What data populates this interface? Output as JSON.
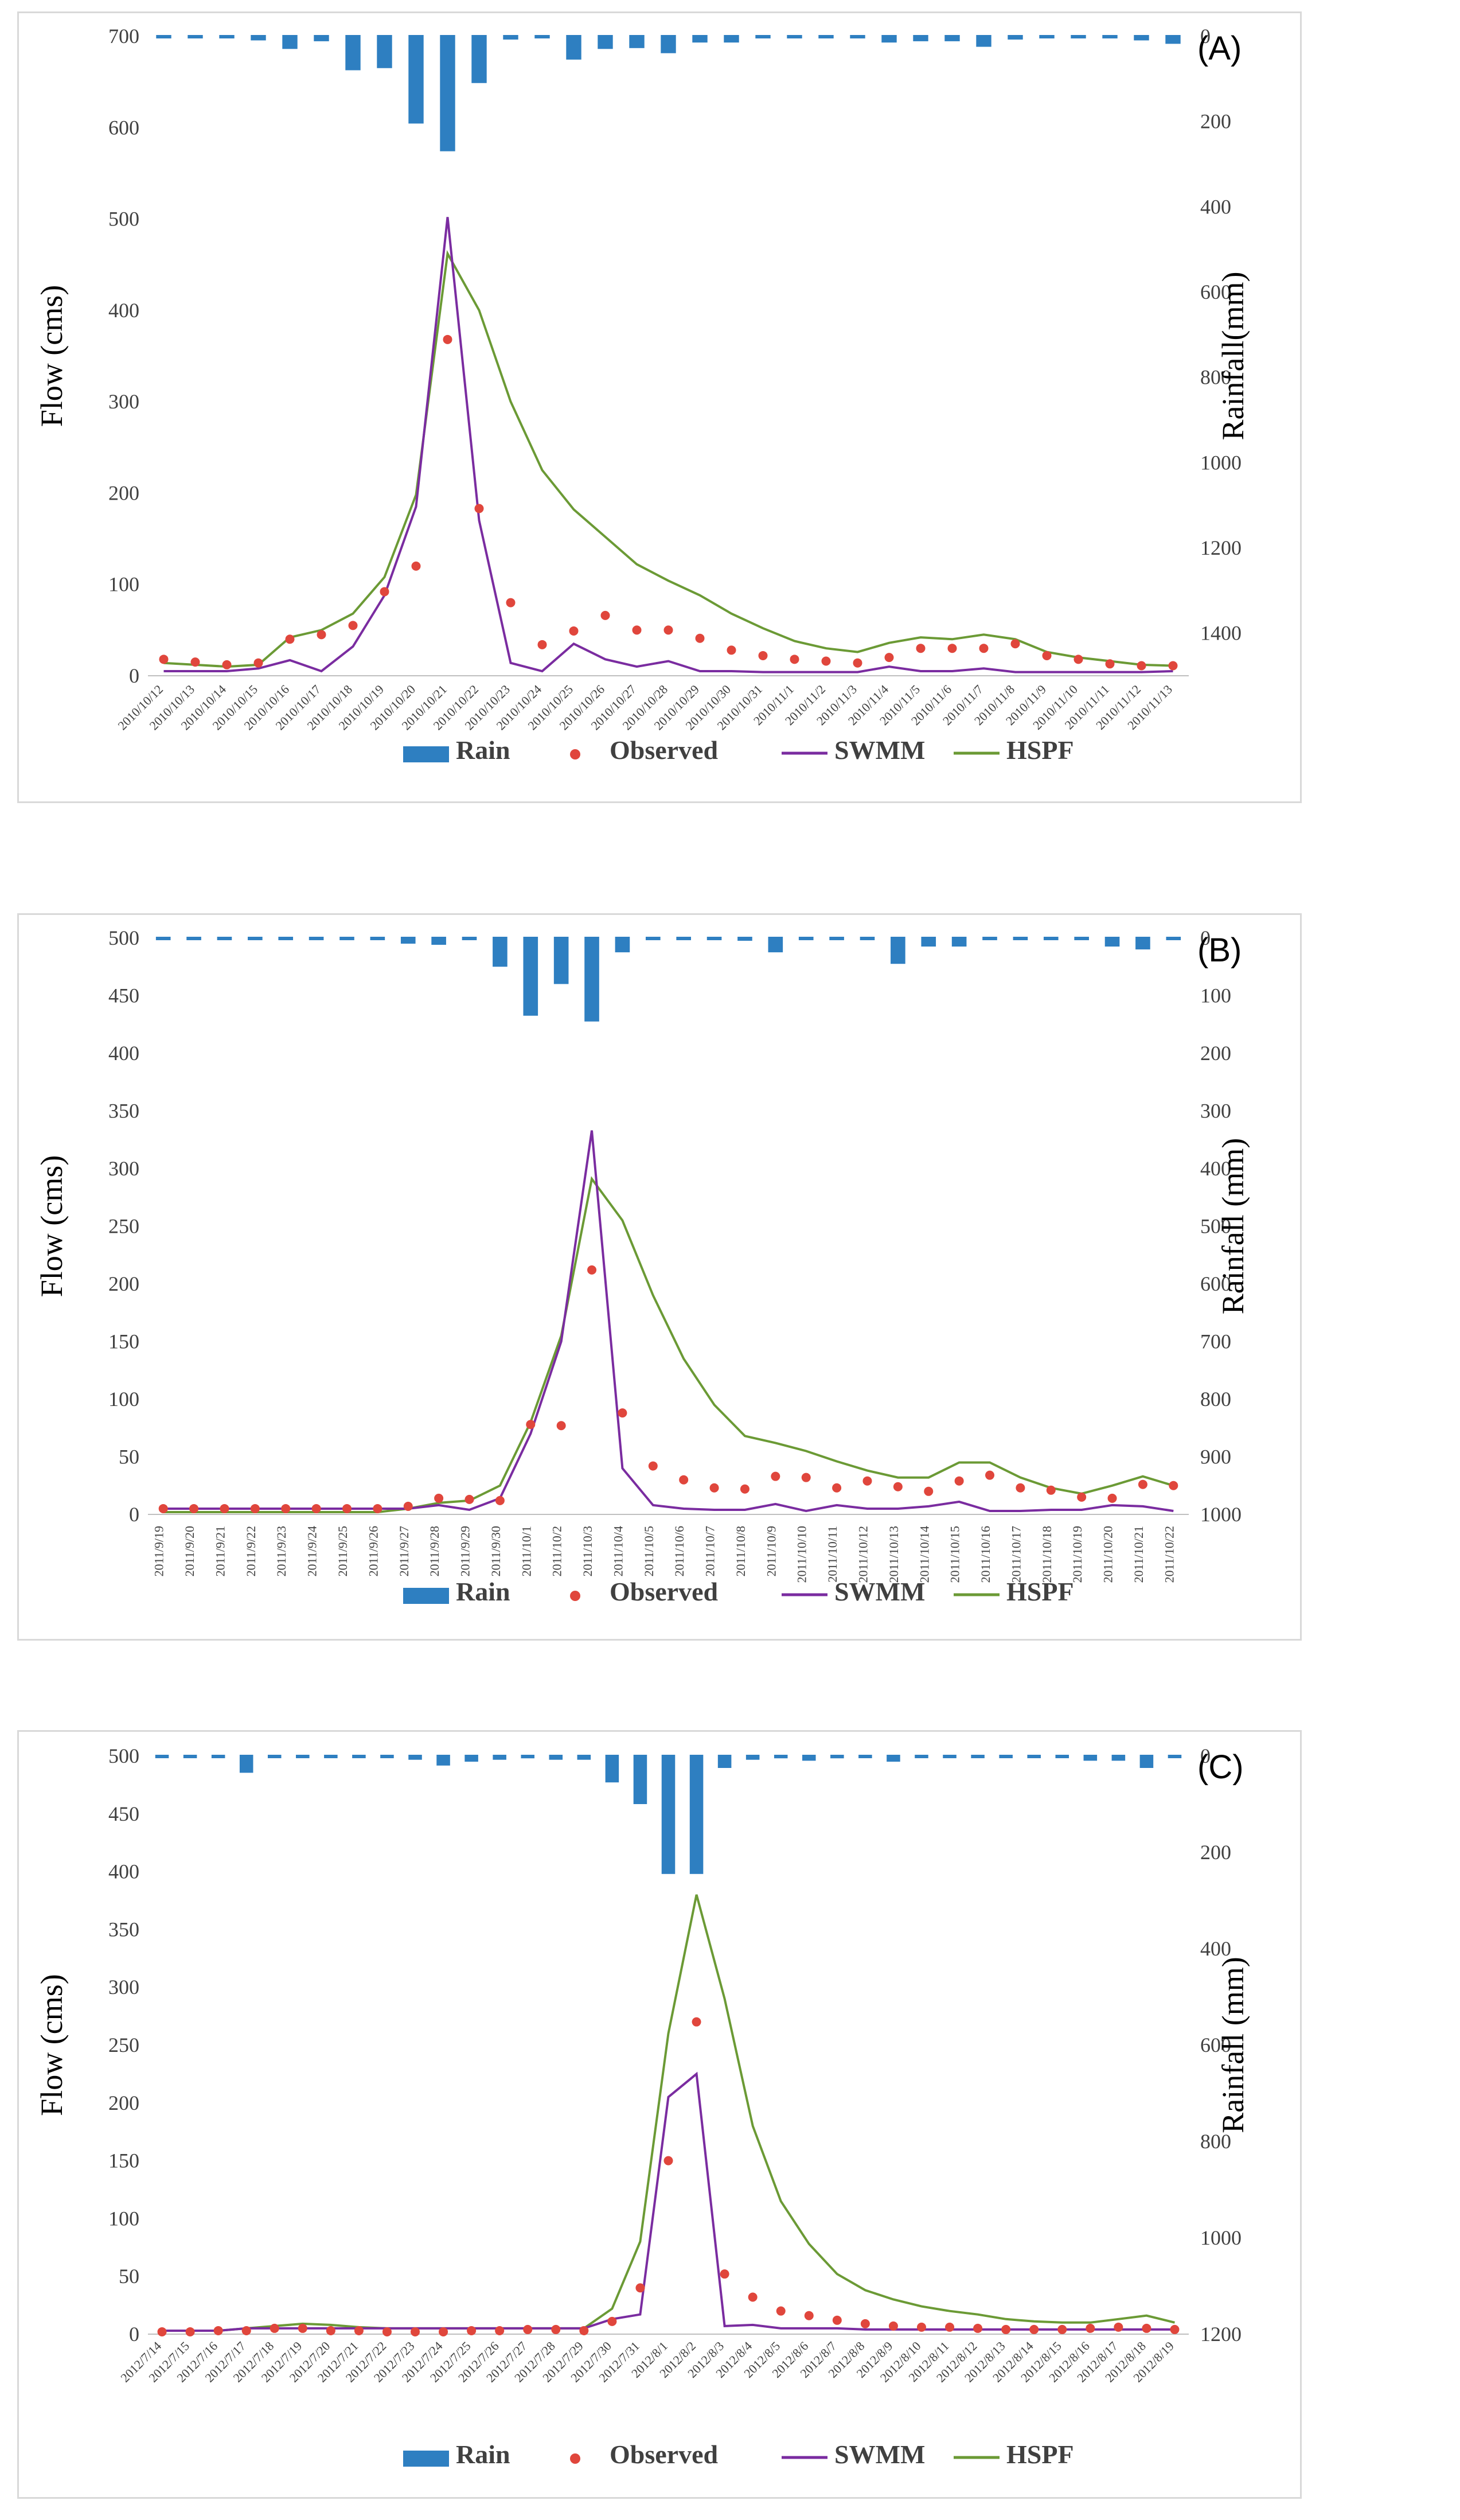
{
  "chart_data": [
    {
      "type": "bar+line",
      "panel_label": "(A)",
      "ylabel_left": "Flow (cms)",
      "ylabel_right": "Rainfall(mm)",
      "ylim_left": [
        0,
        700
      ],
      "yticks_left": [
        0,
        100,
        200,
        300,
        400,
        500,
        600,
        700
      ],
      "ylim_right_inverted": [
        0,
        1500
      ],
      "yticks_right": [
        0,
        200,
        400,
        600,
        800,
        1000,
        1200,
        1400
      ],
      "categories": [
        "2010/10/12",
        "2010/10/13",
        "2010/10/14",
        "2010/10/15",
        "2010/10/16",
        "2010/10/17",
        "2010/10/18",
        "2010/10/19",
        "2010/10/20",
        "2010/10/21",
        "2010/10/22",
        "2010/10/23",
        "2010/10/24",
        "2010/10/25",
        "2010/10/26",
        "2010/10/27",
        "2010/10/28",
        "2010/10/29",
        "2010/10/30",
        "2010/10/31",
        "2010/11/1",
        "2010/11/2",
        "2010/11/3",
        "2010/11/4",
        "2010/11/5",
        "2010/11/6",
        "2010/11/7",
        "2010/11/8",
        "2010/11/9",
        "2010/11/10",
        "2010/11/11",
        "2010/11/12",
        "2010/11/13"
      ],
      "rain": [
        0,
        0,
        5,
        10,
        30,
        12,
        80,
        75,
        205,
        270,
        110,
        8,
        0,
        55,
        30,
        28,
        40,
        15,
        15,
        5,
        0,
        0,
        5,
        15,
        12,
        12,
        25,
        8,
        0,
        0,
        0,
        10,
        18
      ],
      "observed": [
        18,
        15,
        12,
        14,
        40,
        45,
        55,
        92,
        120,
        368,
        183,
        80,
        34,
        49,
        66,
        50,
        50,
        41,
        28,
        22,
        18,
        16,
        14,
        20,
        30,
        30,
        30,
        35,
        22,
        18,
        13,
        11,
        11
      ],
      "swmm": [
        5,
        5,
        5,
        8,
        17,
        5,
        32,
        88,
        185,
        502,
        170,
        14,
        5,
        35,
        18,
        10,
        16,
        5,
        5,
        4,
        4,
        4,
        4,
        10,
        5,
        5,
        8,
        4,
        4,
        4,
        4,
        4,
        5
      ],
      "hspf": [
        14,
        12,
        10,
        12,
        42,
        50,
        68,
        108,
        198,
        462,
        400,
        300,
        225,
        182,
        152,
        122,
        104,
        88,
        68,
        52,
        38,
        30,
        26,
        36,
        42,
        40,
        45,
        40,
        26,
        20,
        16,
        12,
        11
      ],
      "legend": [
        "Rain",
        "Observed",
        "SWMM",
        "HSPF"
      ]
    },
    {
      "type": "bar+line",
      "panel_label": "(B)",
      "ylabel_left": "Flow (cms)",
      "ylabel_right": "Rainfall (mm)",
      "ylim_left": [
        0,
        500
      ],
      "yticks_left": [
        0,
        50,
        100,
        150,
        200,
        250,
        300,
        350,
        400,
        450,
        500
      ],
      "ylim_right_inverted": [
        0,
        1000
      ],
      "yticks_right": [
        0,
        100,
        200,
        300,
        400,
        500,
        600,
        700,
        800,
        900,
        1000
      ],
      "categories": [
        "2011/9/19",
        "2011/9/20",
        "2011/9/21",
        "2011/9/22",
        "2011/9/23",
        "2011/9/24",
        "2011/9/25",
        "2011/9/26",
        "2011/9/27",
        "2011/9/28",
        "2011/9/29",
        "2011/9/30",
        "2011/10/1",
        "2011/10/2",
        "2011/10/3",
        "2011/10/4",
        "2011/10/5",
        "2011/10/6",
        "2011/10/7",
        "2011/10/8",
        "2011/10/9",
        "2011/10/10",
        "2011/10/11",
        "2011/10/12",
        "2011/10/13",
        "2011/10/14",
        "2011/10/15",
        "2011/10/16",
        "2011/10/17",
        "2011/10/18",
        "2011/10/19",
        "2011/10/20",
        "2011/10/21",
        "2011/10/22"
      ],
      "rain": [
        3,
        0,
        3,
        0,
        0,
        0,
        0,
        0,
        10,
        12,
        0,
        50,
        135,
        80,
        145,
        25,
        3,
        3,
        3,
        5,
        25,
        0,
        3,
        3,
        45,
        15,
        15,
        3,
        0,
        3,
        0,
        15,
        20,
        3
      ],
      "observed": [
        5,
        5,
        5,
        5,
        5,
        5,
        5,
        5,
        7,
        14,
        13,
        12,
        78,
        77,
        212,
        88,
        42,
        30,
        23,
        22,
        33,
        32,
        23,
        29,
        24,
        20,
        29,
        34,
        23,
        21,
        15,
        14,
        26,
        25
      ],
      "swmm": [
        5,
        5,
        5,
        5,
        5,
        5,
        5,
        5,
        5,
        8,
        4,
        14,
        70,
        150,
        333,
        40,
        8,
        5,
        4,
        4,
        9,
        3,
        8,
        5,
        5,
        7,
        11,
        3,
        3,
        4,
        4,
        8,
        7,
        3
      ],
      "hspf": [
        2,
        2,
        2,
        2,
        2,
        2,
        2,
        2,
        5,
        10,
        12,
        25,
        80,
        155,
        291,
        255,
        190,
        135,
        95,
        68,
        62,
        55,
        46,
        38,
        32,
        32,
        45,
        45,
        32,
        23,
        18,
        25,
        33,
        25
      ],
      "legend": [
        "Rain",
        "Observed",
        "SWMM",
        "HSPF"
      ]
    },
    {
      "type": "bar+line",
      "panel_label": "(C)",
      "ylabel_left": "Flow (cms)",
      "ylabel_right": "Rainfall (mm)",
      "ylim_left": [
        0,
        500
      ],
      "yticks_left": [
        0,
        50,
        100,
        150,
        200,
        250,
        300,
        350,
        400,
        450,
        500
      ],
      "ylim_right_inverted": [
        0,
        1200
      ],
      "yticks_right": [
        0,
        200,
        400,
        600,
        800,
        1000,
        1200
      ],
      "categories": [
        "2012/7/14",
        "2012/7/15",
        "2012/7/16",
        "2012/7/17",
        "2012/7/18",
        "2012/7/19",
        "2012/7/20",
        "2012/7/21",
        "2012/7/22",
        "2012/7/23",
        "2012/7/24",
        "2012/7/25",
        "2012/7/26",
        "2012/7/27",
        "2012/7/28",
        "2012/7/29",
        "2012/7/30",
        "2012/7/31",
        "2012/8/1",
        "2012/8/2",
        "2012/8/3",
        "2012/8/4",
        "2012/8/5",
        "2012/8/6",
        "2012/8/7",
        "2012/8/8",
        "2012/8/9",
        "2012/8/10",
        "2012/8/11",
        "2012/8/12",
        "2012/8/13",
        "2012/8/14",
        "2012/8/15",
        "2012/8/16",
        "2012/8/17",
        "2012/8/18",
        "2012/8/19"
      ],
      "rain": [
        0,
        3,
        0,
        35,
        0,
        0,
        3,
        3,
        3,
        8,
        20,
        12,
        8,
        5,
        8,
        8,
        55,
        100,
        245,
        245,
        25,
        8,
        5,
        10,
        5,
        0,
        12,
        0,
        0,
        3,
        0,
        3,
        0,
        10,
        10,
        25,
        3
      ],
      "observed": [
        2,
        2,
        3,
        3,
        5,
        5,
        3,
        3,
        2,
        2,
        2,
        3,
        3,
        4,
        4,
        3,
        11,
        40,
        150,
        270,
        52,
        32,
        20,
        16,
        12,
        9,
        7,
        6,
        6,
        5,
        4,
        4,
        4,
        5,
        6,
        5,
        4
      ],
      "swmm": [
        3,
        3,
        3,
        5,
        5,
        5,
        5,
        5,
        5,
        5,
        5,
        5,
        5,
        5,
        5,
        5,
        13,
        17,
        205,
        225,
        7,
        8,
        5,
        5,
        5,
        4,
        4,
        4,
        4,
        4,
        4,
        4,
        4,
        4,
        4,
        4,
        4
      ],
      "hspf": [
        3,
        3,
        3,
        5,
        7,
        9,
        8,
        6,
        5,
        5,
        5,
        5,
        5,
        5,
        5,
        5,
        22,
        80,
        260,
        380,
        290,
        180,
        115,
        78,
        52,
        38,
        30,
        24,
        20,
        17,
        13,
        11,
        10,
        10,
        13,
        16,
        10
      ],
      "legend": [
        "Rain",
        "Observed",
        "SWMM",
        "HSPF"
      ]
    }
  ],
  "colors": {
    "rain": "#2e7fc1",
    "observed": "#e0463c",
    "swmm": "#7a2ca0",
    "hspf": "#6b9a35"
  }
}
